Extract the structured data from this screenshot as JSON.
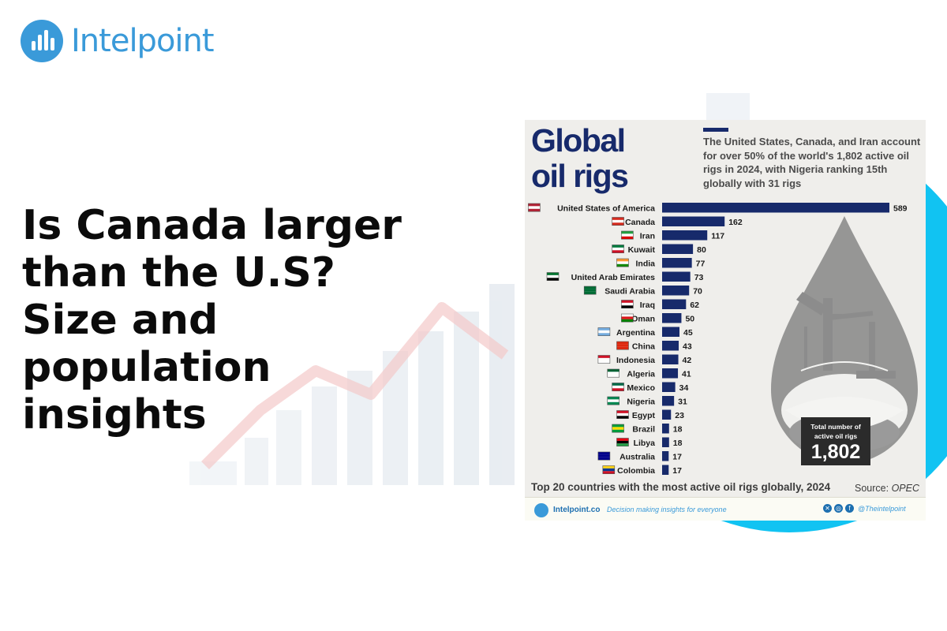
{
  "brand": {
    "name": "Intelpoint",
    "logo_icon": "bar-chart-icon",
    "color": "#3a9ad9"
  },
  "headline": {
    "lines": [
      "Is Canada larger",
      "than the U.S?",
      "Size and",
      "population",
      "insights"
    ]
  },
  "infographic": {
    "title_lines": [
      "Global",
      "oil rigs"
    ],
    "subtitle": "The United States, Canada, and Iran account for over 50% of the world's 1,802 active oil rigs in 2024, with Nigeria ranking 15th globally with 31 rigs",
    "total_label": "Total number of active oil rigs",
    "total_value": "1,802",
    "footnote": "Top 20 countries with the most active oil rigs globally, 2024",
    "source_prefix": "Source: ",
    "source_name": "OPEC",
    "footer": {
      "site": "Intelpoint.co",
      "tagline": "Decision making insights for everyone",
      "social_icons": [
        "x-icon",
        "instagram-icon",
        "facebook-icon"
      ],
      "handle": "@Theintelpoint"
    },
    "bar_color": "#172a6b"
  },
  "chart_data": {
    "type": "bar",
    "orientation": "horizontal",
    "title": "Global oil rigs",
    "categories": [
      "United States of America",
      "Canada",
      "Iran",
      "Kuwait",
      "India",
      "United Arab Emirates",
      "Saudi Arabia",
      "Iraq",
      "Oman",
      "Argentina",
      "China",
      "Indonesia",
      "Algeria",
      "Mexico",
      "Nigeria",
      "Egypt",
      "Brazil",
      "Libya",
      "Australia",
      "Colombia"
    ],
    "values": [
      589,
      162,
      117,
      80,
      77,
      73,
      70,
      62,
      50,
      45,
      43,
      42,
      41,
      34,
      31,
      23,
      18,
      18,
      17,
      17
    ],
    "flag_icons": [
      "usa-flag-icon",
      "canada-flag-icon",
      "iran-flag-icon",
      "kuwait-flag-icon",
      "india-flag-icon",
      "uae-flag-icon",
      "saudi-arabia-flag-icon",
      "iraq-flag-icon",
      "oman-flag-icon",
      "argentina-flag-icon",
      "china-flag-icon",
      "indonesia-flag-icon",
      "algeria-flag-icon",
      "mexico-flag-icon",
      "nigeria-flag-icon",
      "egypt-flag-icon",
      "brazil-flag-icon",
      "libya-flag-icon",
      "australia-flag-icon",
      "colombia-flag-icon"
    ],
    "xlim": [
      0,
      589
    ],
    "grid": false,
    "legend": "none"
  }
}
